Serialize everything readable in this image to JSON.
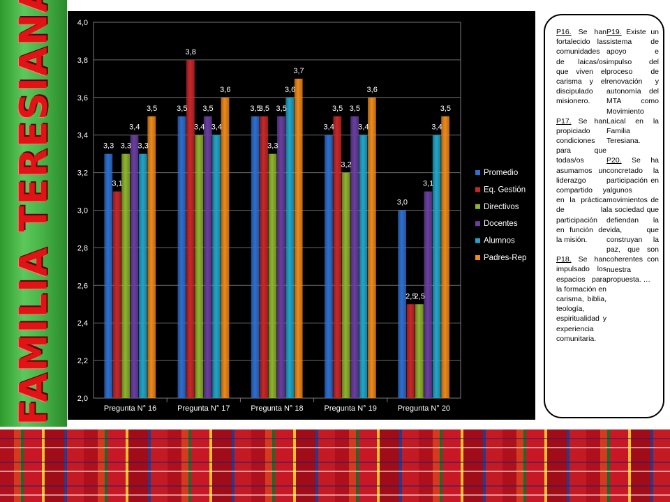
{
  "sidebar": {
    "title": "FAMILIA TERESIANA"
  },
  "colors": {
    "series": [
      "#2f6fd0",
      "#c8282a",
      "#8fb52e",
      "#6a3fa0",
      "#22a6c8",
      "#f08a1a"
    ],
    "chart_background": "#000000",
    "sidebar": "#49b649",
    "sidebar_text": "#e01414"
  },
  "chart_data": {
    "type": "bar",
    "categories": [
      "Pregunta N° 16",
      "Pregunta N° 17",
      "Pregunta N° 18",
      "Pregunta N° 19",
      "Pregunta N° 20"
    ],
    "series": [
      {
        "name": "Promedio",
        "values": [
          3.3,
          3.5,
          3.5,
          3.4,
          3.0
        ]
      },
      {
        "name": "Eq. Gestión",
        "values": [
          3.1,
          3.8,
          3.5,
          3.5,
          2.5
        ]
      },
      {
        "name": "Directivos",
        "values": [
          3.3,
          3.4,
          3.3,
          3.2,
          2.5
        ]
      },
      {
        "name": "Docentes",
        "values": [
          3.4,
          3.5,
          3.5,
          3.5,
          3.1
        ]
      },
      {
        "name": "Alumnos",
        "values": [
          3.3,
          3.4,
          3.6,
          3.4,
          3.4
        ]
      },
      {
        "name": "Padres-Rep",
        "values": [
          3.5,
          3.6,
          3.7,
          3.6,
          3.5
        ]
      }
    ],
    "ylim": [
      2.0,
      4.0
    ],
    "yticks": [
      "2,0",
      "2,2",
      "2,4",
      "2,6",
      "2,8",
      "3,0",
      "3,2",
      "3,4",
      "3,6",
      "3,8",
      "4,0"
    ],
    "data_labels": [
      [
        "3,3",
        "3,5",
        "3,5",
        "3,4",
        "3,0"
      ],
      [
        "3,1",
        "3,8",
        "3,5",
        "3,5",
        "2,5"
      ],
      [
        "3,3",
        "3,4",
        "3,3",
        "3,2",
        "2,5"
      ],
      [
        "3,4",
        "3,5",
        "3,5",
        "3,5",
        "3,1"
      ],
      [
        "3,3",
        "3,4",
        "3,6",
        "3,4",
        "3,4"
      ],
      [
        "3,5",
        "3,6",
        "3,7",
        "3,6",
        "3,5"
      ]
    ],
    "title": "",
    "xlabel": "",
    "ylabel": "",
    "grid": true,
    "legend": "right"
  },
  "notes": {
    "left": [
      {
        "tag": "P16.",
        "text": " Se han fortalecido las comunidades de laicas/os que viven el carisma y el discipulado misionero."
      },
      {
        "tag": "P17.",
        "text": " Se han propiciado condiciones para que todas/os asumamos un liderazgo compartido y en la práctica de la participación en función de la misión."
      },
      {
        "tag": "P18.",
        "text": " Se han impulsado los espacios para la formación en carisma, biblia, teología, espiritualidad y experiencia comunitaria."
      }
    ],
    "right": [
      {
        "tag": "P19.",
        "text": " Existe un sistema de apoyo e impulso del proceso de renovación y autonomía del MTA como Movimiento Laical en la Familia Teresiana."
      },
      {
        "tag": "P20.",
        "text": " Se ha concretado la participación en algunos movimientos de la sociedad que defiendan la vida, que construyan la paz, que son coherentes con nuestra propuesta. …"
      }
    ]
  }
}
